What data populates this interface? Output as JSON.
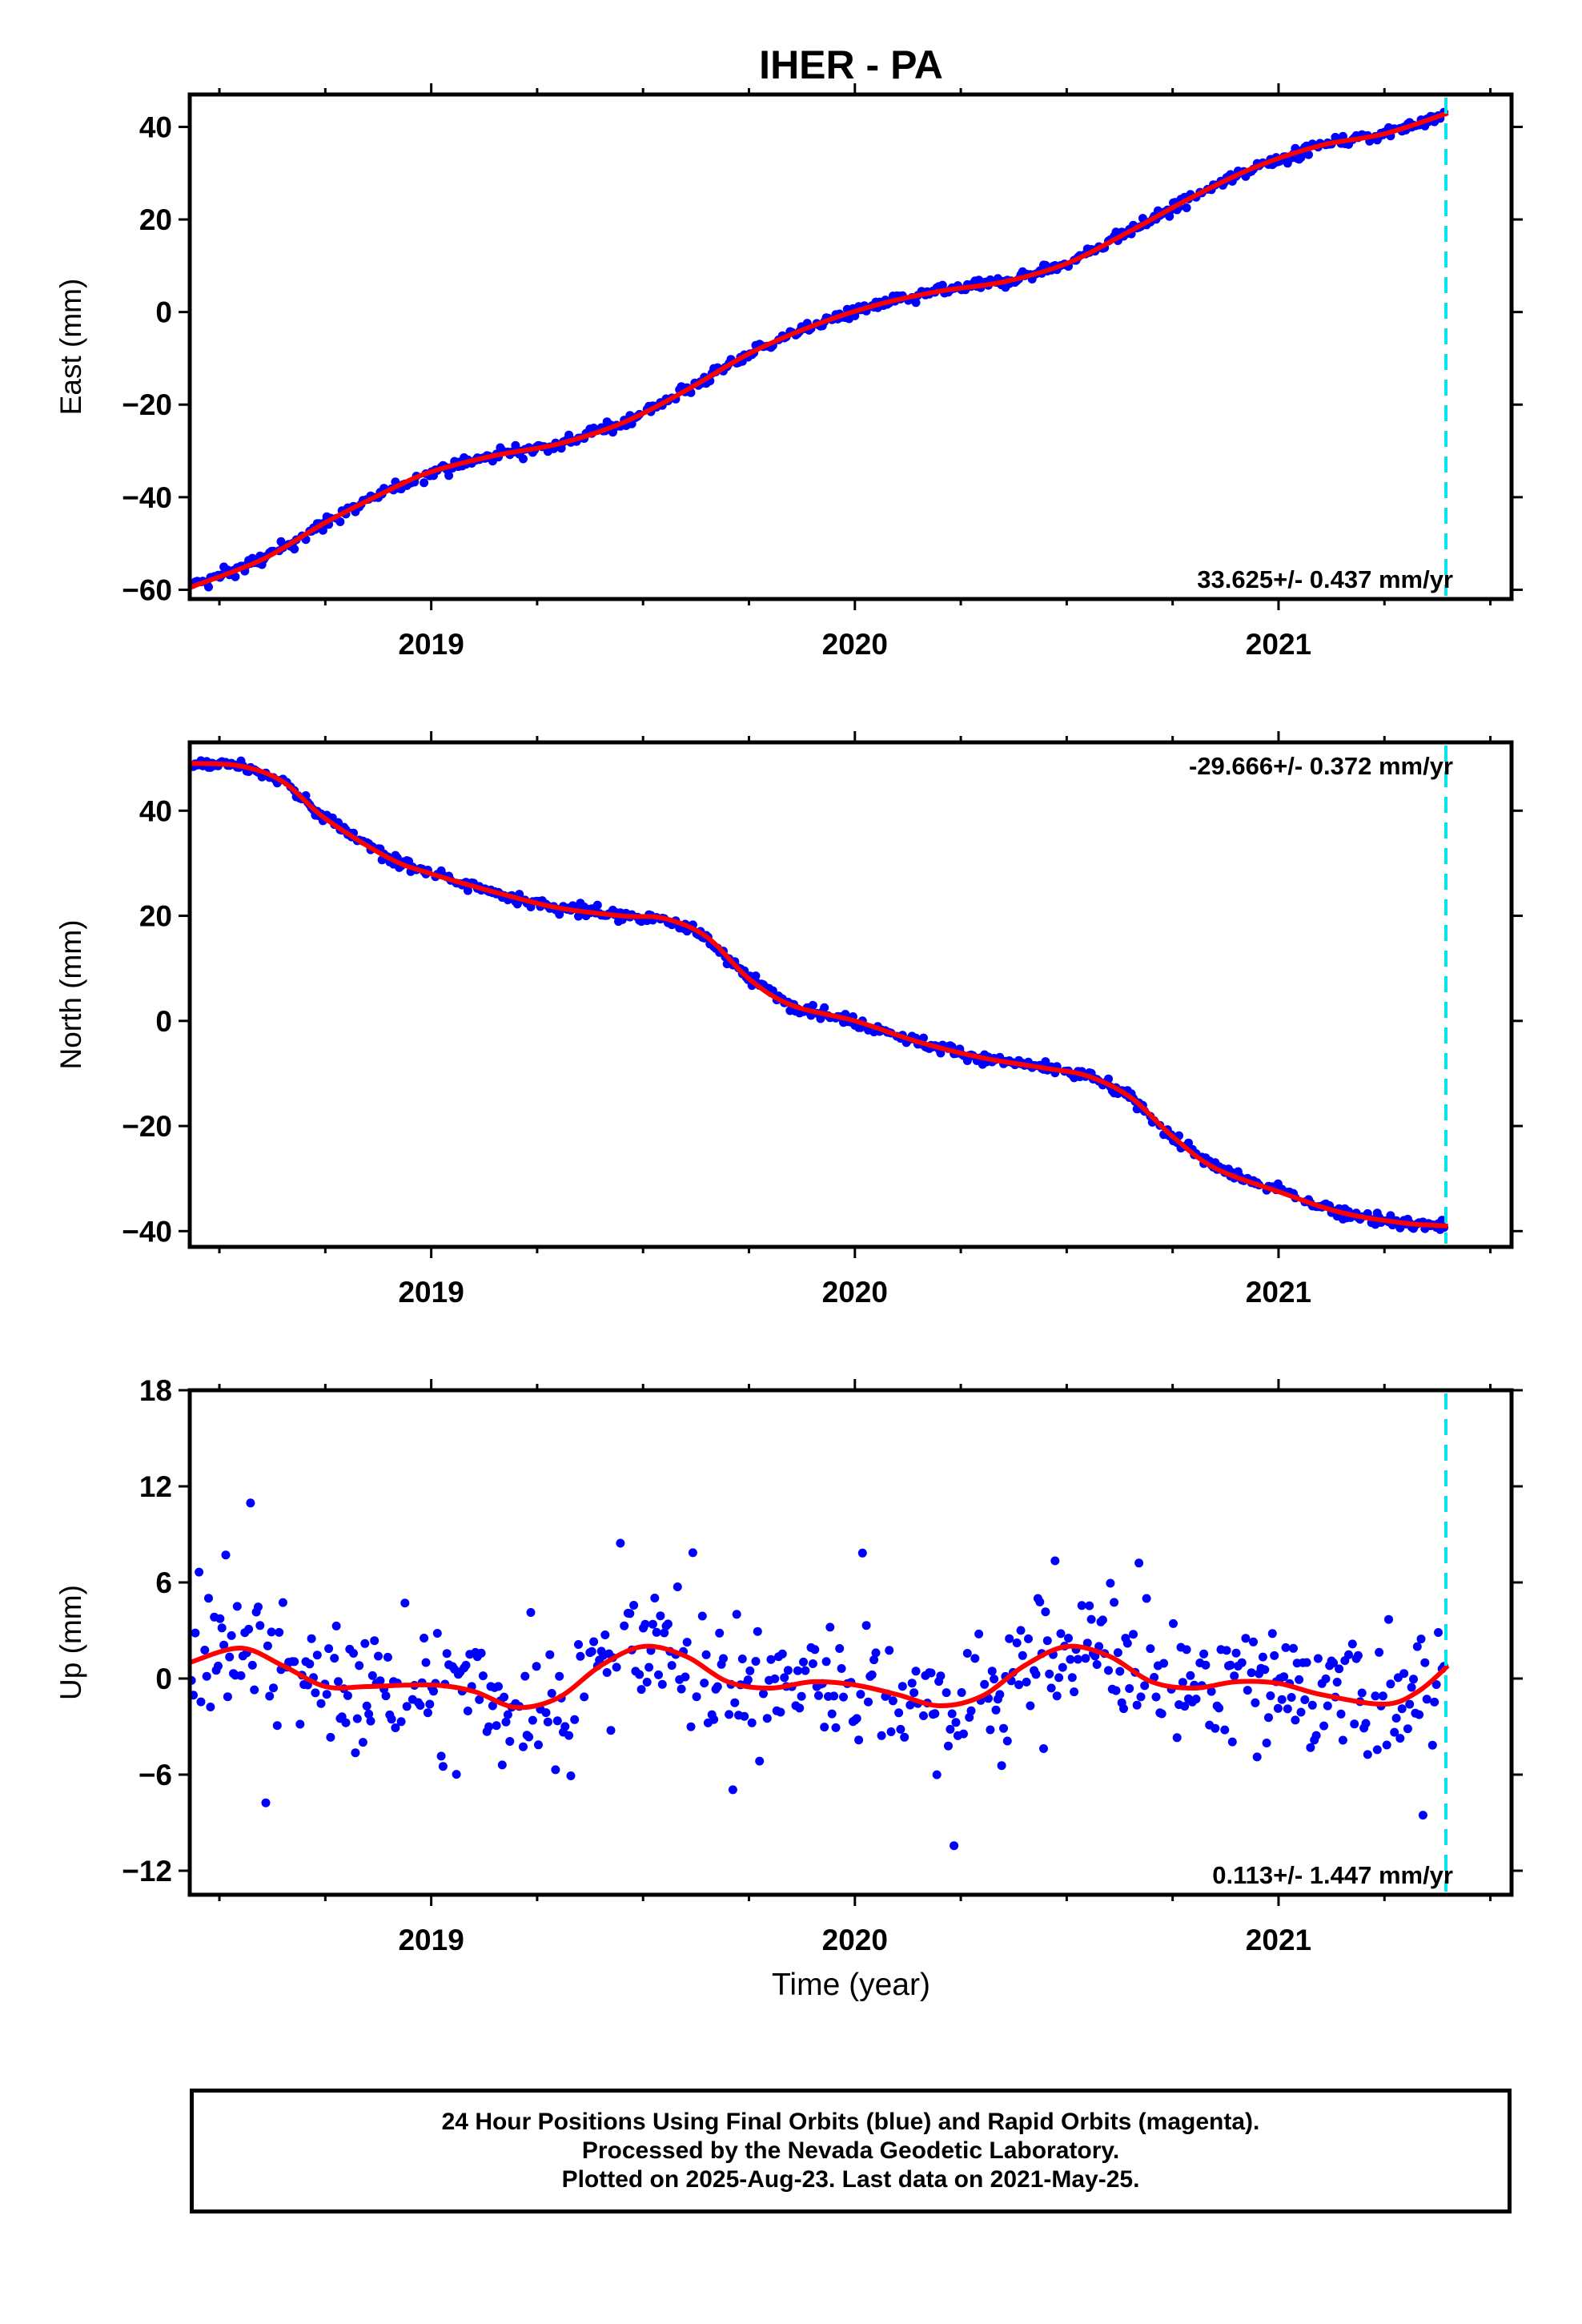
{
  "chart_data": {
    "title": "IHER - PA",
    "xlabel": "Time (year)",
    "x_ticks": [
      "2019",
      "2020",
      "2021"
    ],
    "x_range": [
      2018.43,
      2021.55
    ],
    "last_data_marker_x": 2021.395,
    "colors": {
      "final_orbits": "#0000ff",
      "rapid_orbits": "#ff00ff",
      "model_fit": "#ff0000",
      "last_data_marker": "#00e5ee"
    },
    "panels": [
      {
        "type": "scatter",
        "ylabel": "East (mm)",
        "ylim": [
          -62,
          47
        ],
        "y_ticks": [
          40,
          20,
          0,
          -20,
          -40,
          -60
        ],
        "y_tick_labels": [
          "40",
          "20",
          "0",
          "−20",
          "−40",
          "−60"
        ],
        "rate_label": "33.625+/- 0.437 mm/yr",
        "rate_position": "bottom-right",
        "trend_fit": [
          [
            2018.43,
            -59.5
          ],
          [
            2018.6,
            -53.5
          ],
          [
            2018.75,
            -45.5
          ],
          [
            2018.9,
            -38.5
          ],
          [
            2019.0,
            -34.5
          ],
          [
            2019.15,
            -31.0
          ],
          [
            2019.3,
            -28.5
          ],
          [
            2019.45,
            -24.0
          ],
          [
            2019.6,
            -17.0
          ],
          [
            2019.75,
            -9.0
          ],
          [
            2019.9,
            -3.0
          ],
          [
            2020.05,
            1.5
          ],
          [
            2020.2,
            4.5
          ],
          [
            2020.35,
            6.5
          ],
          [
            2020.5,
            10.5
          ],
          [
            2020.65,
            17.5
          ],
          [
            2020.8,
            25.0
          ],
          [
            2020.95,
            31.5
          ],
          [
            2021.1,
            36.0
          ],
          [
            2021.25,
            38.5
          ],
          [
            2021.4,
            43.0
          ]
        ],
        "residual_sigma": 1.2,
        "outlier_probability": 0.0
      },
      {
        "type": "scatter",
        "ylabel": "North (mm)",
        "ylim": [
          -43,
          53
        ],
        "y_ticks": [
          40,
          20,
          0,
          -20,
          -40
        ],
        "y_tick_labels": [
          "40",
          "20",
          "0",
          "−20",
          "−40"
        ],
        "rate_label": "-29.666+/- 0.372 mm/yr",
        "rate_position": "top-right",
        "trend_fit": [
          [
            2018.43,
            49.0
          ],
          [
            2018.55,
            48.5
          ],
          [
            2018.65,
            45.5
          ],
          [
            2018.75,
            38.5
          ],
          [
            2018.9,
            31.0
          ],
          [
            2019.0,
            28.0
          ],
          [
            2019.15,
            24.5
          ],
          [
            2019.3,
            21.5
          ],
          [
            2019.45,
            20.0
          ],
          [
            2019.55,
            19.5
          ],
          [
            2019.65,
            16.0
          ],
          [
            2019.75,
            8.0
          ],
          [
            2019.85,
            3.0
          ],
          [
            2020.0,
            0.0
          ],
          [
            2020.15,
            -4.0
          ],
          [
            2020.3,
            -7.0
          ],
          [
            2020.45,
            -9.0
          ],
          [
            2020.55,
            -10.5
          ],
          [
            2020.65,
            -14.5
          ],
          [
            2020.75,
            -22.0
          ],
          [
            2020.85,
            -28.0
          ],
          [
            2021.0,
            -32.5
          ],
          [
            2021.15,
            -36.5
          ],
          [
            2021.3,
            -38.5
          ],
          [
            2021.4,
            -39.0
          ]
        ],
        "residual_sigma": 1.0,
        "outlier_probability": 0.0
      },
      {
        "type": "scatter",
        "ylabel": "Up (mm)",
        "ylim": [
          -13.5,
          18
        ],
        "y_ticks": [
          18,
          12,
          6,
          0,
          -6,
          -12
        ],
        "y_tick_labels": [
          "18",
          "12",
          "6",
          "0",
          "−6",
          "−12"
        ],
        "rate_label": "0.113+/- 1.447 mm/yr",
        "rate_position": "bottom-right",
        "trend_fit": [
          [
            2018.43,
            1.0
          ],
          [
            2018.55,
            1.9
          ],
          [
            2018.65,
            0.8
          ],
          [
            2018.75,
            -0.5
          ],
          [
            2018.85,
            -0.5
          ],
          [
            2019.0,
            -0.4
          ],
          [
            2019.1,
            -0.8
          ],
          [
            2019.2,
            -1.8
          ],
          [
            2019.3,
            -1.2
          ],
          [
            2019.4,
            0.8
          ],
          [
            2019.5,
            2.0
          ],
          [
            2019.6,
            1.4
          ],
          [
            2019.7,
            -0.2
          ],
          [
            2019.8,
            -0.6
          ],
          [
            2019.9,
            -0.2
          ],
          [
            2020.0,
            -0.4
          ],
          [
            2020.1,
            -1.0
          ],
          [
            2020.2,
            -1.7
          ],
          [
            2020.3,
            -1.1
          ],
          [
            2020.4,
            0.8
          ],
          [
            2020.5,
            2.0
          ],
          [
            2020.6,
            1.4
          ],
          [
            2020.7,
            -0.2
          ],
          [
            2020.8,
            -0.6
          ],
          [
            2020.9,
            -0.2
          ],
          [
            2021.0,
            -0.3
          ],
          [
            2021.1,
            -1.0
          ],
          [
            2021.25,
            -1.6
          ],
          [
            2021.33,
            -0.8
          ],
          [
            2021.4,
            0.8
          ]
        ],
        "residual_sigma": 3.6,
        "outlier_probability": 0.03
      }
    ]
  },
  "caption": {
    "line1": "24 Hour Positions Using Final Orbits (blue) and Rapid Orbits (magenta).",
    "line2": "Processed by the Nevada Geodetic Laboratory.",
    "line3": "Plotted on 2025-Aug-23. Last data on 2021-May-25."
  }
}
